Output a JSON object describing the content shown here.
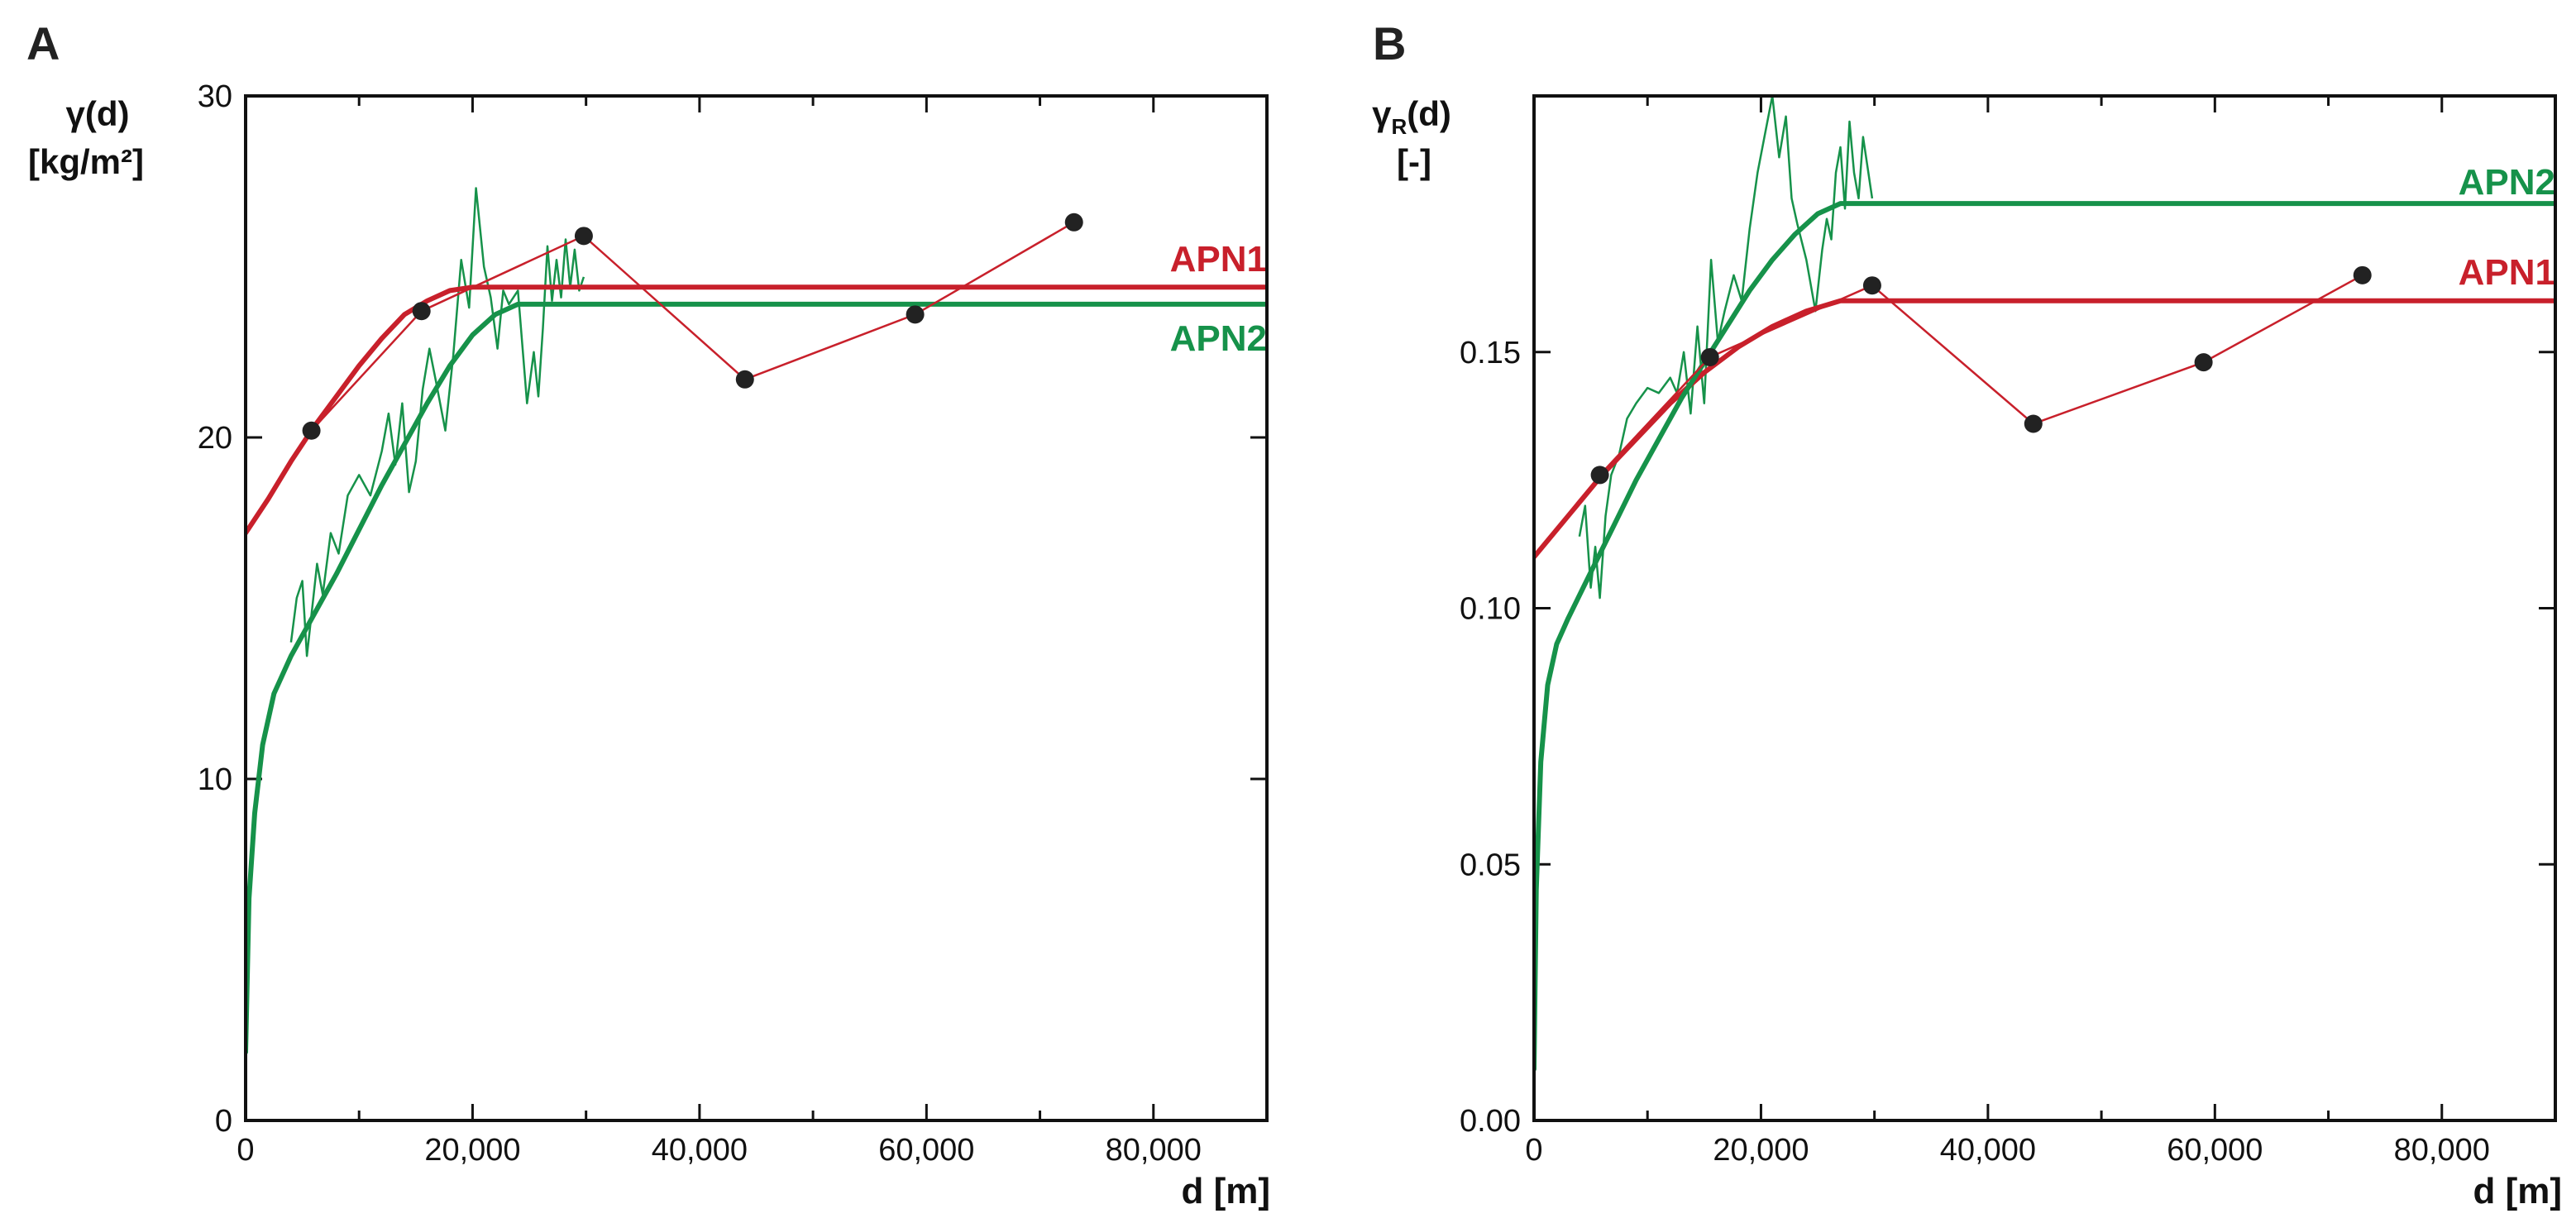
{
  "chart_data": [
    {
      "panel": "A",
      "type": "line",
      "ylabel_line1": "γ(d)",
      "ylabel_line2": "[kg/m²]",
      "xlabel": "d [m]",
      "xlim": [
        0,
        90000
      ],
      "ylim": [
        0,
        30
      ],
      "xticks": [
        0,
        20000,
        40000,
        60000,
        80000
      ],
      "xtick_labels": [
        "0",
        "20,000",
        "40,000",
        "60,000",
        "80,000"
      ],
      "yticks": [
        0,
        10,
        20,
        30
      ],
      "ytick_labels": [
        "0",
        "10",
        "20",
        "30"
      ],
      "colors": {
        "red": "#c8202b",
        "green": "#16924a",
        "point": "#222222"
      },
      "series": [
        {
          "name": "APN1",
          "role": "model",
          "color": "#c8202b",
          "x": [
            0,
            2000,
            4000,
            6000,
            8000,
            10000,
            12000,
            14000,
            16000,
            18000,
            20000,
            24000,
            30000,
            40000,
            60000,
            90000
          ],
          "y": [
            17.2,
            18.2,
            19.3,
            20.3,
            21.2,
            22.1,
            22.9,
            23.6,
            24.0,
            24.3,
            24.4,
            24.4,
            24.4,
            24.4,
            24.4,
            24.4
          ]
        },
        {
          "name": "APN2",
          "role": "model",
          "color": "#16924a",
          "x": [
            0,
            300,
            800,
            1500,
            2500,
            4000,
            6000,
            8000,
            10000,
            12000,
            14000,
            16000,
            18000,
            20000,
            22000,
            24000,
            26000,
            28000,
            30000,
            40000,
            60000,
            90000
          ],
          "y": [
            2.0,
            6.5,
            9.0,
            11.0,
            12.5,
            13.6,
            14.8,
            16.0,
            17.3,
            18.6,
            19.8,
            21.0,
            22.1,
            23.0,
            23.6,
            23.9,
            23.9,
            23.9,
            23.9,
            23.9,
            23.9,
            23.9
          ]
        },
        {
          "name": "APN1 experimental",
          "role": "points",
          "color": "#c8202b",
          "x": [
            5800,
            15500,
            29800,
            44000,
            59000,
            73000
          ],
          "y": [
            20.2,
            23.7,
            25.9,
            21.7,
            23.6,
            26.3
          ]
        },
        {
          "name": "APN2 experimental",
          "role": "noisy",
          "color": "#16924a",
          "x": [
            4000,
            4500,
            5000,
            5400,
            5800,
            6300,
            6800,
            7500,
            8200,
            9000,
            10000,
            11000,
            12000,
            12600,
            13200,
            13800,
            14400,
            15000,
            15600,
            16200,
            16800,
            17600,
            18300,
            19000,
            19700,
            20300,
            21000,
            21600,
            22200,
            22700,
            23200,
            24000,
            24800,
            25400,
            25800,
            26200,
            26600,
            27000,
            27400,
            27800,
            28200,
            28600,
            29000,
            29400,
            29800
          ],
          "y": [
            14.0,
            15.3,
            15.8,
            13.6,
            14.8,
            16.3,
            15.4,
            17.2,
            16.6,
            18.3,
            18.9,
            18.3,
            19.6,
            20.7,
            19.2,
            21.0,
            18.4,
            19.3,
            21.4,
            22.6,
            21.6,
            20.2,
            22.4,
            25.2,
            23.8,
            27.3,
            25.0,
            24.1,
            22.6,
            24.3,
            23.9,
            24.3,
            21.0,
            22.5,
            21.2,
            23.2,
            25.6,
            24.0,
            25.2,
            24.1,
            25.8,
            24.4,
            25.5,
            24.3,
            24.7
          ]
        }
      ]
    },
    {
      "panel": "B",
      "type": "line",
      "ylabel_line1": "γR(d)",
      "ylabel_line2": "[-]",
      "xlabel": "d [m]",
      "xlim": [
        0,
        90000
      ],
      "ylim": [
        0,
        0.2
      ],
      "xticks": [
        0,
        20000,
        40000,
        60000,
        80000
      ],
      "xtick_labels": [
        "0",
        "20,000",
        "40,000",
        "60,000",
        "80,000"
      ],
      "yticks": [
        0,
        0.05,
        0.1,
        0.15
      ],
      "ytick_labels": [
        "0.00",
        "0.05",
        "0.10",
        "0.15"
      ],
      "colors": {
        "red": "#c8202b",
        "green": "#16924a",
        "point": "#222222"
      },
      "series": [
        {
          "name": "APN1",
          "role": "model",
          "color": "#c8202b",
          "x": [
            0,
            3000,
            6000,
            9000,
            12000,
            15000,
            18000,
            21000,
            24000,
            27000,
            30000,
            40000,
            60000,
            90000
          ],
          "y": [
            0.11,
            0.118,
            0.126,
            0.133,
            0.14,
            0.146,
            0.151,
            0.155,
            0.158,
            0.16,
            0.16,
            0.16,
            0.16,
            0.16
          ]
        },
        {
          "name": "APN2",
          "role": "model",
          "color": "#16924a",
          "x": [
            0,
            200,
            600,
            1200,
            2000,
            3000,
            5000,
            7000,
            9000,
            11000,
            13000,
            15000,
            17000,
            19000,
            21000,
            23000,
            25000,
            27000,
            30000,
            40000,
            60000,
            90000
          ],
          "y": [
            0.01,
            0.045,
            0.07,
            0.085,
            0.093,
            0.098,
            0.107,
            0.116,
            0.125,
            0.133,
            0.141,
            0.148,
            0.155,
            0.162,
            0.168,
            0.173,
            0.177,
            0.179,
            0.179,
            0.179,
            0.179,
            0.179
          ]
        },
        {
          "name": "APN1 experimental",
          "role": "points",
          "color": "#c8202b",
          "x": [
            5800,
            15500,
            29800,
            44000,
            59000,
            73000
          ],
          "y": [
            0.126,
            0.149,
            0.163,
            0.136,
            0.148,
            0.165
          ]
        },
        {
          "name": "APN2 experimental",
          "role": "noisy",
          "color": "#16924a",
          "x": [
            4000,
            4500,
            5000,
            5400,
            5800,
            6300,
            6800,
            7500,
            8200,
            9000,
            10000,
            11000,
            12000,
            12600,
            13200,
            13800,
            14400,
            15000,
            15600,
            16200,
            16800,
            17600,
            18300,
            19000,
            19700,
            20300,
            21000,
            21600,
            22200,
            22700,
            23200,
            24000,
            24800,
            25400,
            25800,
            26200,
            26600,
            27000,
            27400,
            27800,
            28200,
            28600,
            29000,
            29400,
            29800
          ],
          "y": [
            0.114,
            0.12,
            0.104,
            0.112,
            0.102,
            0.118,
            0.126,
            0.13,
            0.137,
            0.14,
            0.143,
            0.142,
            0.145,
            0.142,
            0.15,
            0.138,
            0.155,
            0.14,
            0.168,
            0.152,
            0.158,
            0.165,
            0.16,
            0.174,
            0.185,
            0.192,
            0.2,
            0.188,
            0.196,
            0.18,
            0.175,
            0.168,
            0.158,
            0.17,
            0.176,
            0.172,
            0.185,
            0.19,
            0.178,
            0.195,
            0.185,
            0.18,
            0.192,
            0.186,
            0.18
          ]
        }
      ]
    }
  ]
}
